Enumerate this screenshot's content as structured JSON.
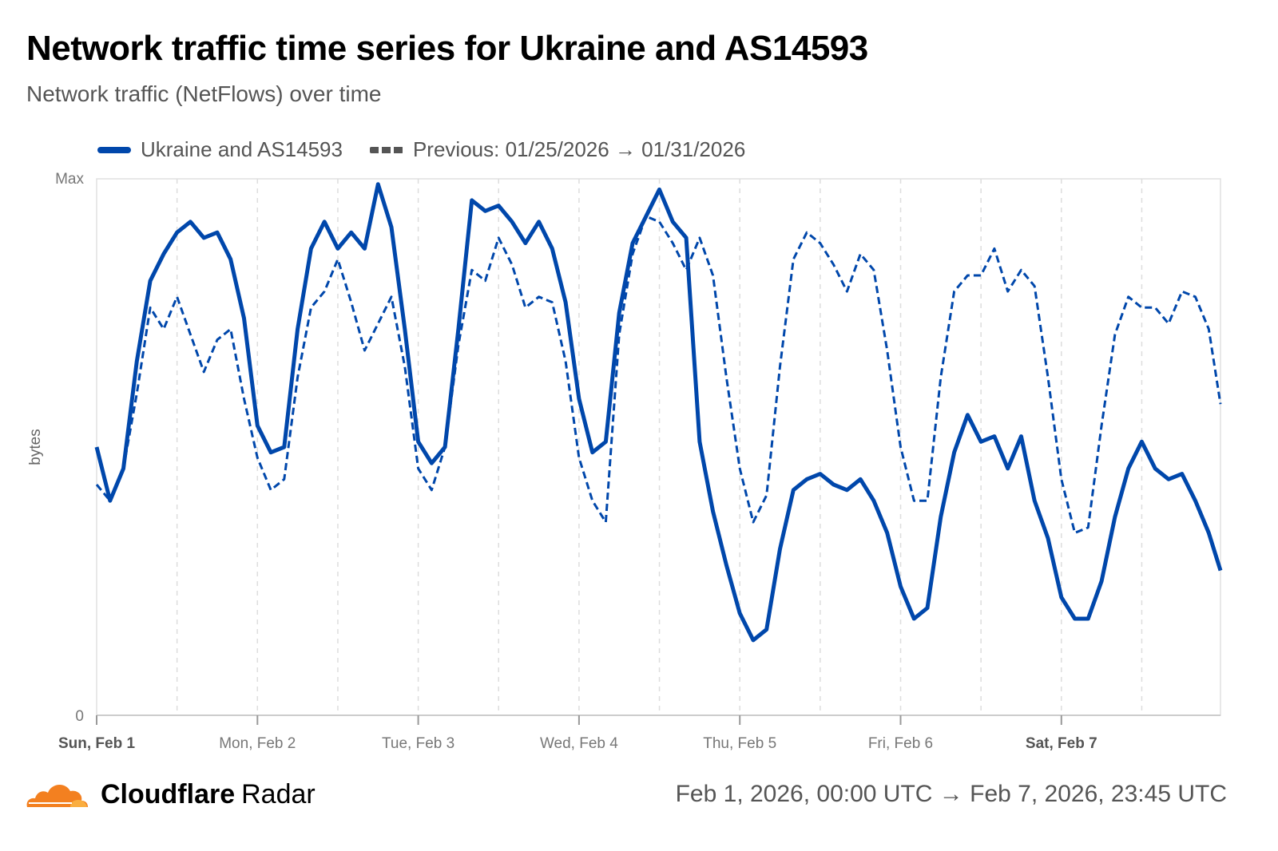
{
  "header": {
    "title": "Network traffic time series for Ukraine and AS14593",
    "subtitle": "Network traffic (NetFlows) over time"
  },
  "footer": {
    "brand_bold": "Cloudflare",
    "brand_light": "Radar",
    "date_range": "Feb 1, 2026, 00:00 UTC → Feb 7, 2026, 23:45 UTC"
  },
  "colors": {
    "series": "#0047ab",
    "grid": "#dddddd",
    "axis_text": "#666666"
  },
  "chart_data": {
    "type": "line",
    "title": "Network traffic time series for Ukraine and AS14593",
    "xlabel": "",
    "ylabel": "bytes",
    "y_tick_labels": [
      "0",
      "Max"
    ],
    "ylim": [
      0,
      1
    ],
    "x_unit": "hours since Feb 1, 2026 00:00 UTC",
    "xlim": [
      0,
      167.75
    ],
    "x_tick_labels": [
      {
        "label": "Sun, Feb 1",
        "hour": 0,
        "bold": true
      },
      {
        "label": "Mon, Feb 2",
        "hour": 24,
        "bold": false
      },
      {
        "label": "Tue, Feb 3",
        "hour": 48,
        "bold": false
      },
      {
        "label": "Wed, Feb 4",
        "hour": 72,
        "bold": false
      },
      {
        "label": "Thu, Feb 5",
        "hour": 96,
        "bold": false
      },
      {
        "label": "Fri, Feb 6",
        "hour": 120,
        "bold": false
      },
      {
        "label": "Sat, Feb 7",
        "hour": 144,
        "bold": true
      }
    ],
    "grid_minor_every_hours": 12,
    "legend_position": "top-left",
    "x": [
      0,
      2,
      4,
      6,
      8,
      10,
      12,
      14,
      16,
      18,
      20,
      22,
      24,
      26,
      28,
      30,
      32,
      34,
      36,
      38,
      40,
      42,
      44,
      46,
      48,
      50,
      52,
      54,
      56,
      58,
      60,
      62,
      64,
      66,
      68,
      70,
      72,
      74,
      76,
      78,
      80,
      82,
      84,
      86,
      88,
      90,
      92,
      94,
      96,
      98,
      100,
      102,
      104,
      106,
      108,
      110,
      112,
      114,
      116,
      118,
      120,
      122,
      124,
      126,
      128,
      130,
      132,
      134,
      136,
      138,
      140,
      142,
      144,
      146,
      148,
      150,
      152,
      154,
      156,
      158,
      160,
      162,
      164,
      166,
      167.75
    ],
    "series": [
      {
        "name": "Ukraine and AS14593",
        "style": "solid",
        "values": [
          0.5,
          0.4,
          0.46,
          0.66,
          0.81,
          0.86,
          0.9,
          0.92,
          0.89,
          0.9,
          0.85,
          0.74,
          0.54,
          0.49,
          0.5,
          0.72,
          0.87,
          0.92,
          0.87,
          0.9,
          0.87,
          0.99,
          0.91,
          0.72,
          0.51,
          0.47,
          0.5,
          0.72,
          0.96,
          0.94,
          0.95,
          0.92,
          0.88,
          0.92,
          0.87,
          0.77,
          0.59,
          0.49,
          0.51,
          0.75,
          0.88,
          0.93,
          0.98,
          0.92,
          0.89,
          0.51,
          0.38,
          0.28,
          0.19,
          0.14,
          0.16,
          0.31,
          0.42,
          0.44,
          0.45,
          0.43,
          0.42,
          0.44,
          0.4,
          0.34,
          0.24,
          0.18,
          0.2,
          0.37,
          0.49,
          0.56,
          0.51,
          0.52,
          0.46,
          0.52,
          0.4,
          0.33,
          0.22,
          0.18,
          0.18,
          0.25,
          0.37,
          0.46,
          0.51,
          0.46,
          0.44,
          0.45,
          0.4,
          0.34,
          0.27
        ]
      },
      {
        "name": "Previous: 01/25/2026 → 01/31/2026",
        "style": "dashed",
        "values": [
          0.43,
          0.4,
          0.46,
          0.6,
          0.76,
          0.72,
          0.78,
          0.71,
          0.64,
          0.7,
          0.72,
          0.59,
          0.48,
          0.42,
          0.44,
          0.63,
          0.76,
          0.79,
          0.85,
          0.77,
          0.68,
          0.73,
          0.78,
          0.65,
          0.46,
          0.42,
          0.5,
          0.69,
          0.83,
          0.81,
          0.89,
          0.84,
          0.76,
          0.78,
          0.77,
          0.66,
          0.48,
          0.4,
          0.36,
          0.71,
          0.86,
          0.93,
          0.92,
          0.88,
          0.83,
          0.89,
          0.82,
          0.63,
          0.46,
          0.36,
          0.41,
          0.65,
          0.85,
          0.9,
          0.88,
          0.84,
          0.79,
          0.86,
          0.83,
          0.68,
          0.5,
          0.4,
          0.4,
          0.63,
          0.79,
          0.82,
          0.82,
          0.87,
          0.79,
          0.83,
          0.8,
          0.63,
          0.44,
          0.34,
          0.35,
          0.54,
          0.71,
          0.78,
          0.76,
          0.76,
          0.73,
          0.79,
          0.78,
          0.72,
          0.58
        ]
      }
    ]
  }
}
